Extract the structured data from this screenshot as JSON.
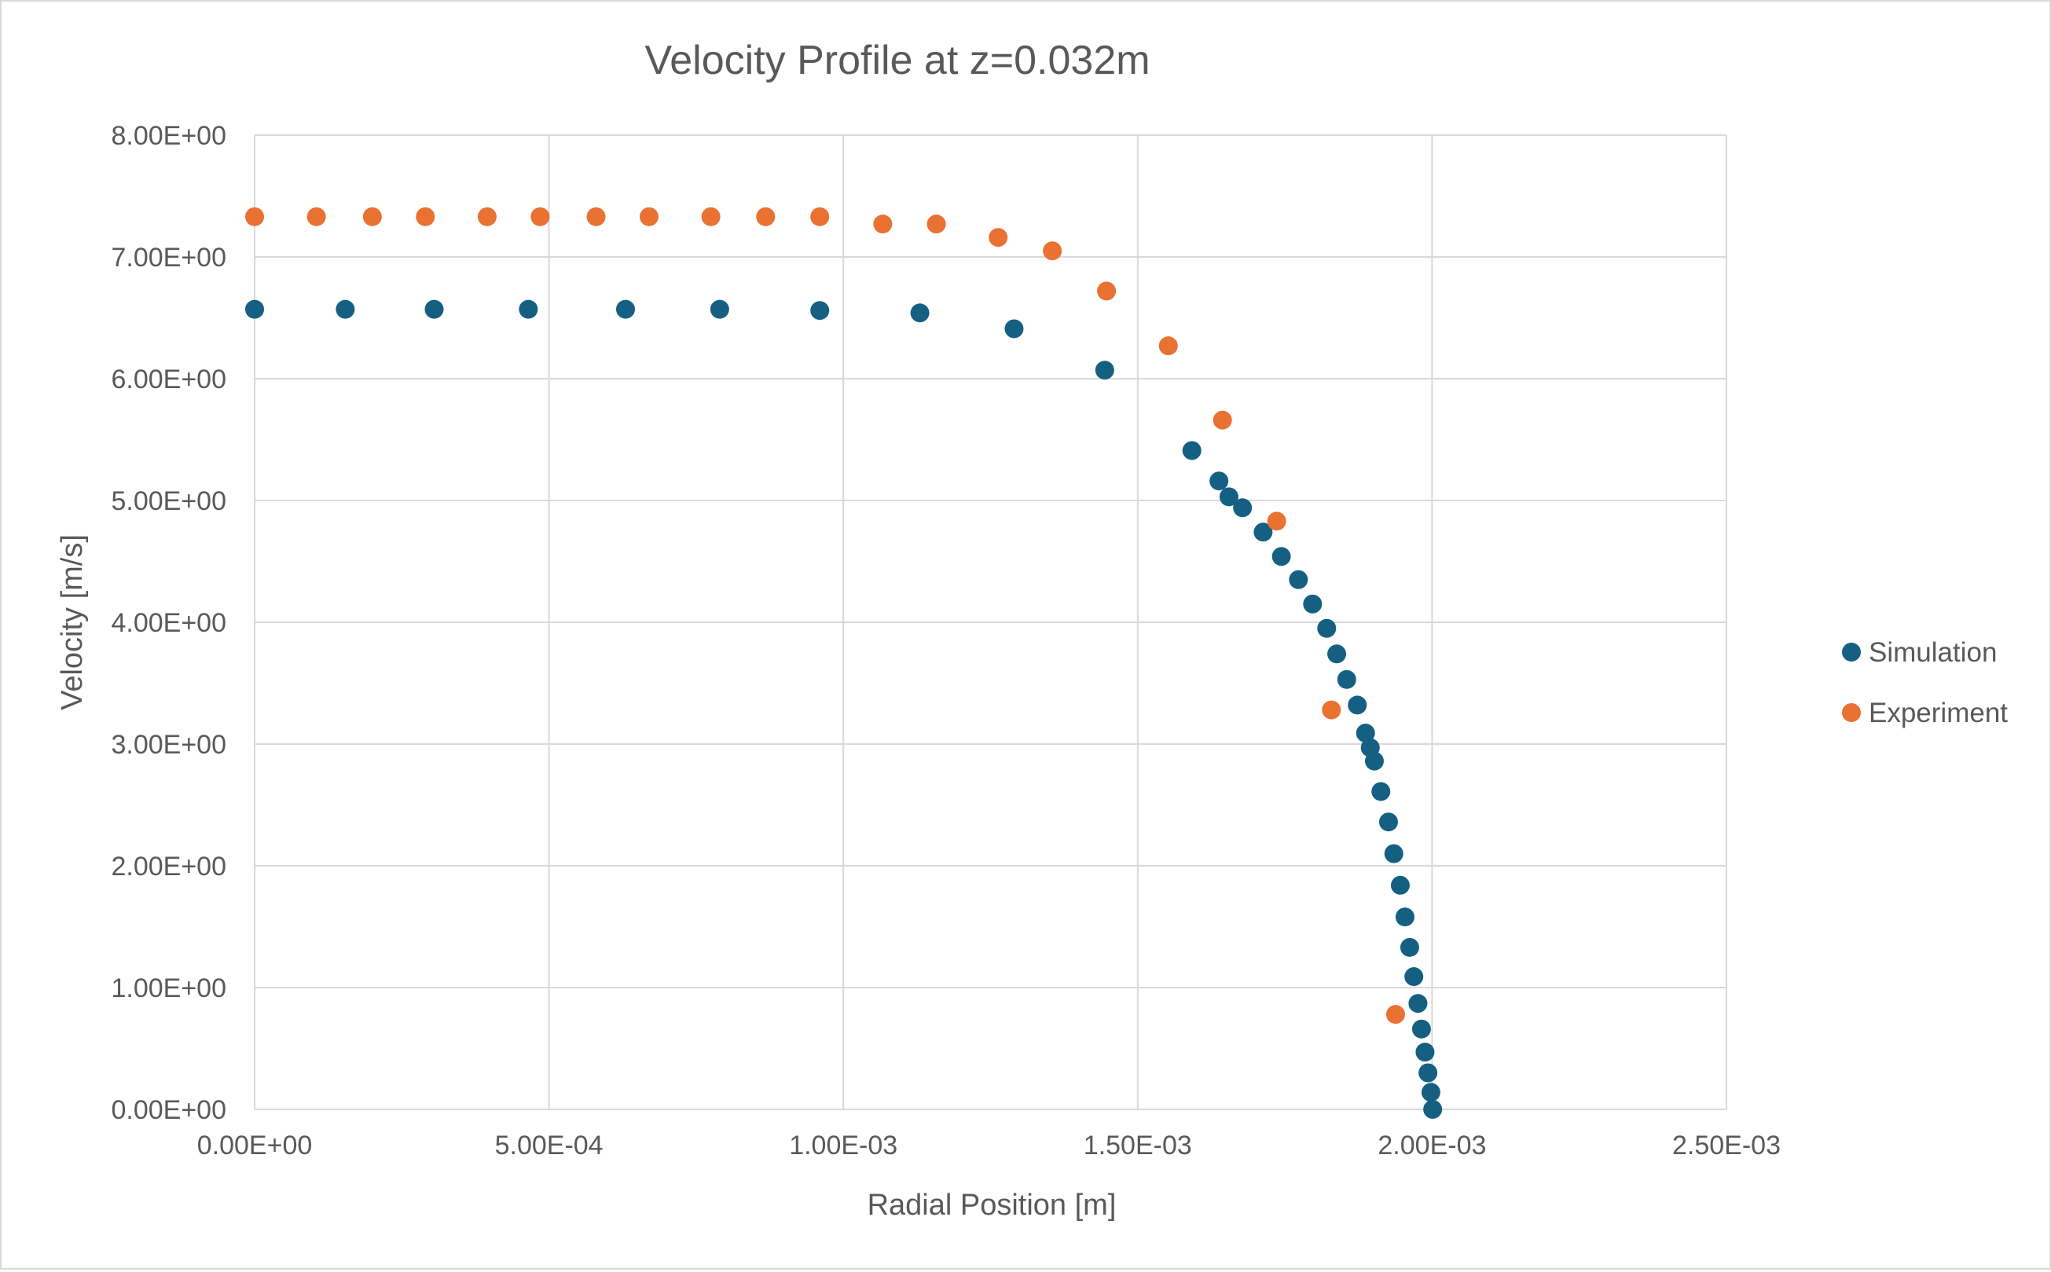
{
  "chart_data": {
    "type": "scatter",
    "title": "Velocity Profile at z=0.032m",
    "xlabel": "Radial Position [m]",
    "ylabel": "Velocity [m/s]",
    "xlim": [
      0,
      0.0025
    ],
    "ylim": [
      0,
      8
    ],
    "x_ticks": [
      0,
      0.0005,
      0.001,
      0.0015,
      0.002,
      0.0025
    ],
    "x_tick_labels": [
      "0.00E+00",
      "5.00E-04",
      "1.00E-03",
      "1.50E-03",
      "2.00E-03",
      "2.50E-03"
    ],
    "y_ticks": [
      0,
      1,
      2,
      3,
      4,
      5,
      6,
      7,
      8
    ],
    "y_tick_labels": [
      "0.00E+00",
      "1.00E+00",
      "2.00E+00",
      "3.00E+00",
      "4.00E+00",
      "5.00E+00",
      "6.00E+00",
      "7.00E+00",
      "8.00E+00"
    ],
    "grid": true,
    "legend_position": "right",
    "series": [
      {
        "name": "Simulation",
        "color": "#156082",
        "points": [
          [
            0.0,
            6.57
          ],
          [
            0.000154,
            6.57
          ],
          [
            0.000305,
            6.57
          ],
          [
            0.000465,
            6.57
          ],
          [
            0.00063,
            6.57
          ],
          [
            0.00079,
            6.57
          ],
          [
            0.00096,
            6.56
          ],
          [
            0.00113,
            6.54
          ],
          [
            0.00129,
            6.41
          ],
          [
            0.001444,
            6.07
          ],
          [
            0.001592,
            5.41
          ],
          [
            0.001638,
            5.16
          ],
          [
            0.001655,
            5.03
          ],
          [
            0.001678,
            4.94
          ],
          [
            0.001713,
            4.74
          ],
          [
            0.001744,
            4.54
          ],
          [
            0.001773,
            4.35
          ],
          [
            0.001797,
            4.15
          ],
          [
            0.001821,
            3.95
          ],
          [
            0.001838,
            3.74
          ],
          [
            0.001855,
            3.53
          ],
          [
            0.001873,
            3.32
          ],
          [
            0.001887,
            3.09
          ],
          [
            0.001895,
            2.97
          ],
          [
            0.001902,
            2.86
          ],
          [
            0.001913,
            2.61
          ],
          [
            0.001926,
            2.36
          ],
          [
            0.001935,
            2.1
          ],
          [
            0.001946,
            1.84
          ],
          [
            0.001954,
            1.58
          ],
          [
            0.001962,
            1.33
          ],
          [
            0.001969,
            1.09
          ],
          [
            0.001976,
            0.87
          ],
          [
            0.001982,
            0.66
          ],
          [
            0.001988,
            0.47
          ],
          [
            0.001993,
            0.3
          ],
          [
            0.001998,
            0.14
          ],
          [
            0.002001,
            0.0
          ]
        ]
      },
      {
        "name": "Experiment",
        "color": "#E97132",
        "points": [
          [
            0.0,
            7.33
          ],
          [
            0.000105,
            7.33
          ],
          [
            0.0002,
            7.33
          ],
          [
            0.00029,
            7.33
          ],
          [
            0.000395,
            7.33
          ],
          [
            0.000485,
            7.33
          ],
          [
            0.00058,
            7.33
          ],
          [
            0.00067,
            7.33
          ],
          [
            0.000775,
            7.33
          ],
          [
            0.000868,
            7.33
          ],
          [
            0.00096,
            7.33
          ],
          [
            0.001067,
            7.27
          ],
          [
            0.001158,
            7.27
          ],
          [
            0.001263,
            7.16
          ],
          [
            0.001355,
            7.05
          ],
          [
            0.001447,
            6.72
          ],
          [
            0.001552,
            6.27
          ],
          [
            0.001644,
            5.66
          ],
          [
            0.001736,
            4.83
          ],
          [
            0.001829,
            3.28
          ],
          [
            0.001938,
            0.78
          ]
        ]
      }
    ]
  }
}
